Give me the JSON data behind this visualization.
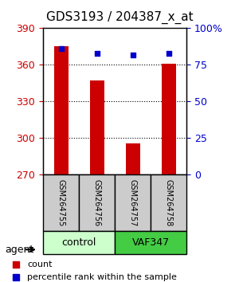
{
  "title": "GDS3193 / 204387_x_at",
  "samples": [
    "GSM264755",
    "GSM264756",
    "GSM264757",
    "GSM264758"
  ],
  "counts": [
    375,
    347,
    296,
    361
  ],
  "percentile_ranks": [
    86,
    83,
    82,
    83
  ],
  "ylim_left": [
    270,
    390
  ],
  "ylim_right": [
    0,
    100
  ],
  "yticks_left": [
    270,
    300,
    330,
    360,
    390
  ],
  "yticks_right": [
    0,
    25,
    50,
    75,
    100
  ],
  "yticklabels_right": [
    "0",
    "25",
    "50",
    "75",
    "100%"
  ],
  "groups": [
    {
      "label": "control",
      "samples": [
        0,
        1
      ],
      "color": "#ccffcc"
    },
    {
      "label": "VAF347",
      "samples": [
        2,
        3
      ],
      "color": "#44cc44"
    }
  ],
  "bar_color": "#cc0000",
  "dot_color": "#0000cc",
  "bar_width": 0.4,
  "grid_color": "#000000",
  "sample_box_color": "#cccccc",
  "legend_items": [
    {
      "label": "count",
      "color": "#cc0000"
    },
    {
      "label": "percentile rank within the sample",
      "color": "#0000cc"
    }
  ],
  "agent_label": "agent",
  "left_axis_color": "#cc0000",
  "right_axis_color": "#0000cc"
}
